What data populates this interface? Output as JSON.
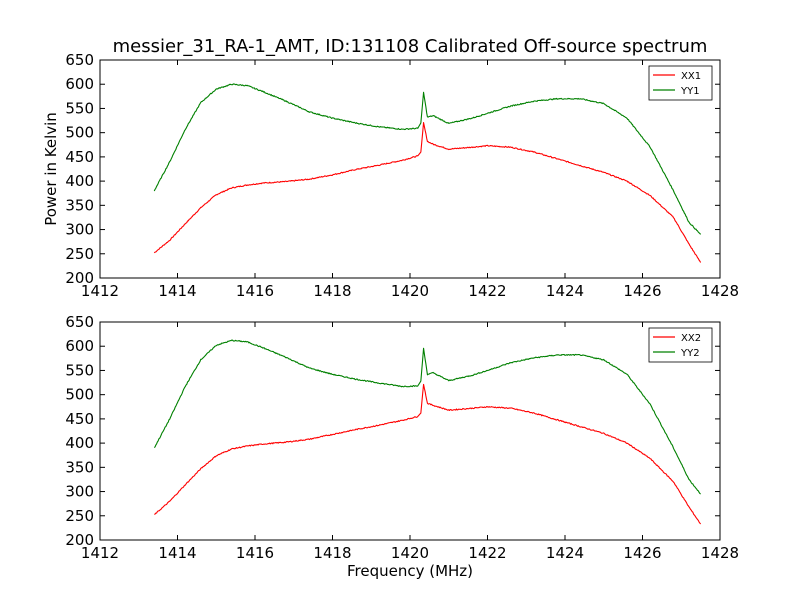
{
  "figure": {
    "title": "messier_31_RA-1_AMT, ID:131108 Calibrated Off-source spectrum"
  },
  "colors": {
    "xx": "#ff0000",
    "yy": "#008000"
  },
  "chart_data": [
    {
      "type": "line",
      "title": "messier_31_RA-1_AMT, ID:131108 Calibrated Off-source spectrum",
      "xlabel": "",
      "ylabel": "Power in Kelvin",
      "xlim": [
        1412,
        1428
      ],
      "ylim": [
        200,
        650
      ],
      "xticks": [
        "1412",
        "1414",
        "1416",
        "1418",
        "1420",
        "1422",
        "1424",
        "1426",
        "1428"
      ],
      "yticks": [
        "200",
        "250",
        "300",
        "350",
        "400",
        "450",
        "500",
        "550",
        "600",
        "650"
      ],
      "grid": false,
      "legend": "top-right",
      "series": [
        {
          "name": "XX1",
          "color": "#ff0000",
          "points": [
            [
              1413.4,
              252
            ],
            [
              1413.8,
              278
            ],
            [
              1414.2,
              312
            ],
            [
              1414.6,
              345
            ],
            [
              1415.0,
              372
            ],
            [
              1415.4,
              386
            ],
            [
              1415.8,
              392
            ],
            [
              1416.2,
              396
            ],
            [
              1416.8,
              399
            ],
            [
              1417.4,
              404
            ],
            [
              1418.0,
              413
            ],
            [
              1418.6,
              424
            ],
            [
              1419.2,
              433
            ],
            [
              1419.8,
              443
            ],
            [
              1420.2,
              452
            ],
            [
              1420.28,
              460
            ],
            [
              1420.35,
              520
            ],
            [
              1420.45,
              482
            ],
            [
              1420.6,
              476
            ],
            [
              1421.0,
              466
            ],
            [
              1421.6,
              470
            ],
            [
              1422.0,
              473
            ],
            [
              1422.6,
              470
            ],
            [
              1423.2,
              460
            ],
            [
              1423.8,
              446
            ],
            [
              1424.4,
              432
            ],
            [
              1425.0,
              418
            ],
            [
              1425.6,
              400
            ],
            [
              1426.2,
              370
            ],
            [
              1426.8,
              325
            ],
            [
              1427.2,
              270
            ],
            [
              1427.5,
              232
            ]
          ]
        },
        {
          "name": "YY1",
          "color": "#008000",
          "points": [
            [
              1413.4,
              380
            ],
            [
              1413.8,
              440
            ],
            [
              1414.2,
              507
            ],
            [
              1414.6,
              562
            ],
            [
              1415.0,
              590
            ],
            [
              1415.4,
              600
            ],
            [
              1415.8,
              597
            ],
            [
              1416.2,
              585
            ],
            [
              1416.8,
              565
            ],
            [
              1417.4,
              543
            ],
            [
              1418.0,
              530
            ],
            [
              1418.6,
              520
            ],
            [
              1419.2,
              512
            ],
            [
              1419.8,
              507
            ],
            [
              1420.2,
              509
            ],
            [
              1420.28,
              520
            ],
            [
              1420.35,
              583
            ],
            [
              1420.45,
              532
            ],
            [
              1420.6,
              535
            ],
            [
              1421.0,
              519
            ],
            [
              1421.6,
              530
            ],
            [
              1422.0,
              540
            ],
            [
              1422.6,
              555
            ],
            [
              1423.2,
              565
            ],
            [
              1423.8,
              570
            ],
            [
              1424.4,
              570
            ],
            [
              1425.0,
              560
            ],
            [
              1425.6,
              530
            ],
            [
              1426.2,
              470
            ],
            [
              1426.8,
              380
            ],
            [
              1427.2,
              315
            ],
            [
              1427.5,
              290
            ]
          ]
        }
      ]
    },
    {
      "type": "line",
      "title": "",
      "xlabel": "Frequency (MHz)",
      "ylabel": "",
      "xlim": [
        1412,
        1428
      ],
      "ylim": [
        200,
        650
      ],
      "xticks": [
        "1412",
        "1414",
        "1416",
        "1418",
        "1420",
        "1422",
        "1424",
        "1426",
        "1428"
      ],
      "yticks": [
        "200",
        "250",
        "300",
        "350",
        "400",
        "450",
        "500",
        "550",
        "600",
        "650"
      ],
      "grid": false,
      "legend": "top-right",
      "series": [
        {
          "name": "XX2",
          "color": "#ff0000",
          "points": [
            [
              1413.4,
              252
            ],
            [
              1413.8,
              280
            ],
            [
              1414.2,
              314
            ],
            [
              1414.6,
              347
            ],
            [
              1415.0,
              374
            ],
            [
              1415.4,
              388
            ],
            [
              1415.8,
              394
            ],
            [
              1416.2,
              398
            ],
            [
              1416.8,
              402
            ],
            [
              1417.4,
              408
            ],
            [
              1418.0,
              418
            ],
            [
              1418.6,
              428
            ],
            [
              1419.2,
              437
            ],
            [
              1419.8,
              447
            ],
            [
              1420.2,
              455
            ],
            [
              1420.28,
              462
            ],
            [
              1420.35,
              522
            ],
            [
              1420.45,
              482
            ],
            [
              1420.6,
              478
            ],
            [
              1421.0,
              468
            ],
            [
              1421.6,
              472
            ],
            [
              1422.0,
              475
            ],
            [
              1422.6,
              472
            ],
            [
              1423.2,
              462
            ],
            [
              1423.8,
              448
            ],
            [
              1424.4,
              434
            ],
            [
              1425.0,
              420
            ],
            [
              1425.6,
              400
            ],
            [
              1426.2,
              368
            ],
            [
              1426.8,
              320
            ],
            [
              1427.2,
              268
            ],
            [
              1427.5,
              233
            ]
          ]
        },
        {
          "name": "YY2",
          "color": "#008000",
          "points": [
            [
              1413.4,
              390
            ],
            [
              1413.8,
              450
            ],
            [
              1414.2,
              517
            ],
            [
              1414.6,
              572
            ],
            [
              1415.0,
              602
            ],
            [
              1415.4,
              612
            ],
            [
              1415.8,
              609
            ],
            [
              1416.2,
              597
            ],
            [
              1416.8,
              577
            ],
            [
              1417.4,
              555
            ],
            [
              1418.0,
              542
            ],
            [
              1418.6,
              532
            ],
            [
              1419.2,
              524
            ],
            [
              1419.8,
              517
            ],
            [
              1420.2,
              518
            ],
            [
              1420.28,
              528
            ],
            [
              1420.35,
              595
            ],
            [
              1420.45,
              542
            ],
            [
              1420.6,
              545
            ],
            [
              1421.0,
              529
            ],
            [
              1421.6,
              540
            ],
            [
              1422.0,
              550
            ],
            [
              1422.6,
              566
            ],
            [
              1423.2,
              576
            ],
            [
              1423.8,
              582
            ],
            [
              1424.4,
              582
            ],
            [
              1425.0,
              572
            ],
            [
              1425.6,
              542
            ],
            [
              1426.2,
              480
            ],
            [
              1426.8,
              390
            ],
            [
              1427.2,
              325
            ],
            [
              1427.5,
              295
            ]
          ]
        }
      ]
    }
  ]
}
